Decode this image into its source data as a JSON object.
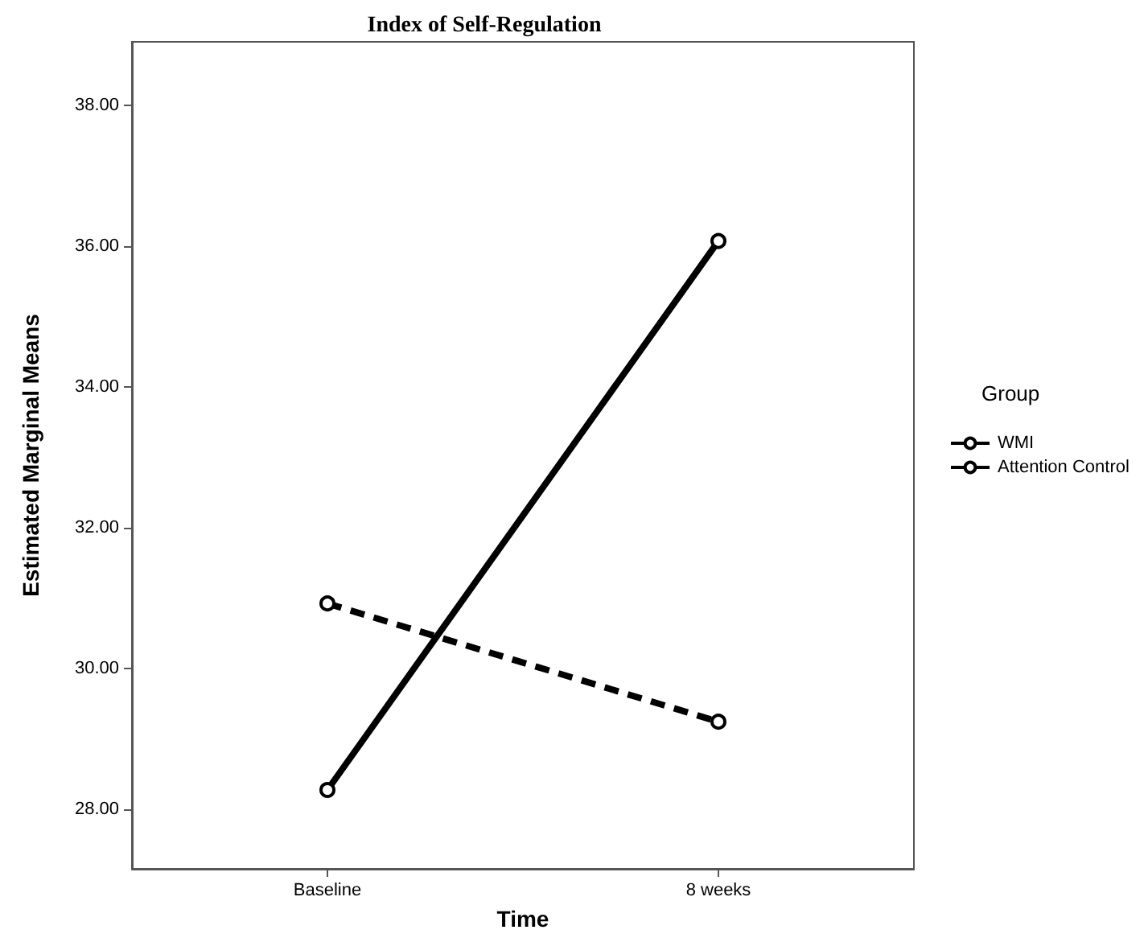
{
  "chart_data": {
    "type": "line",
    "title": "Index of Self-Regulation",
    "xlabel": "Time",
    "ylabel": "Estimated Marginal Means",
    "legend_title": "Group",
    "categories": [
      "Baseline",
      "8 weeks"
    ],
    "series": [
      {
        "name": "WMI",
        "color": "#000000",
        "values": [
          28.27,
          36.07
        ],
        "line_style": "solid"
      },
      {
        "name": "Attention Control",
        "color": "#000000",
        "values": [
          30.92,
          29.24
        ],
        "line_style": "dashed"
      }
    ],
    "ylim": [
      27.15,
      38.9
    ],
    "yticks": [
      {
        "value": 28,
        "label": "28.00"
      },
      {
        "value": 30,
        "label": "30.00"
      },
      {
        "value": 32,
        "label": "32.00"
      },
      {
        "value": 34,
        "label": "34.00"
      },
      {
        "value": 36,
        "label": "36.00"
      },
      {
        "value": 38,
        "label": "38.00"
      }
    ],
    "grid": false,
    "legend": "right",
    "marker": "circle"
  }
}
